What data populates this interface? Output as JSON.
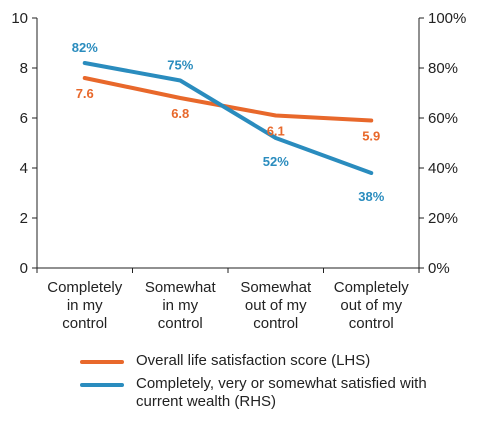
{
  "colors": {
    "series1": "#E8682B",
    "series2": "#2A8CBE",
    "axis": "#222222"
  },
  "chart_data": {
    "type": "line",
    "categories": [
      [
        "Completely",
        "in my",
        "control"
      ],
      [
        "Somewhat",
        "in my",
        "control"
      ],
      [
        "Somewhat",
        "out of my",
        "control"
      ],
      [
        "Completely",
        "out of my",
        "control"
      ]
    ],
    "left_axis": {
      "min": 0,
      "max": 10,
      "ticks": [
        "0",
        "2",
        "4",
        "6",
        "8",
        "10"
      ]
    },
    "right_axis": {
      "min": 0,
      "max": 100,
      "ticks": [
        "0%",
        "20%",
        "40%",
        "60%",
        "80%",
        "100%"
      ]
    },
    "series": [
      {
        "name": "Overall life satisfaction score (LHS)",
        "axis": "left",
        "values": [
          7.6,
          6.8,
          6.1,
          5.9
        ],
        "labels": [
          "7.6",
          "6.8",
          "6.1",
          "5.9"
        ]
      },
      {
        "name": "Completely, very or somewhat satisfied with current wealth (RHS)",
        "axis": "right",
        "values": [
          82,
          75,
          52,
          38
        ],
        "labels": [
          "82%",
          "75%",
          "52%",
          "38%"
        ]
      }
    ],
    "legend": "bottom",
    "grid": false
  }
}
